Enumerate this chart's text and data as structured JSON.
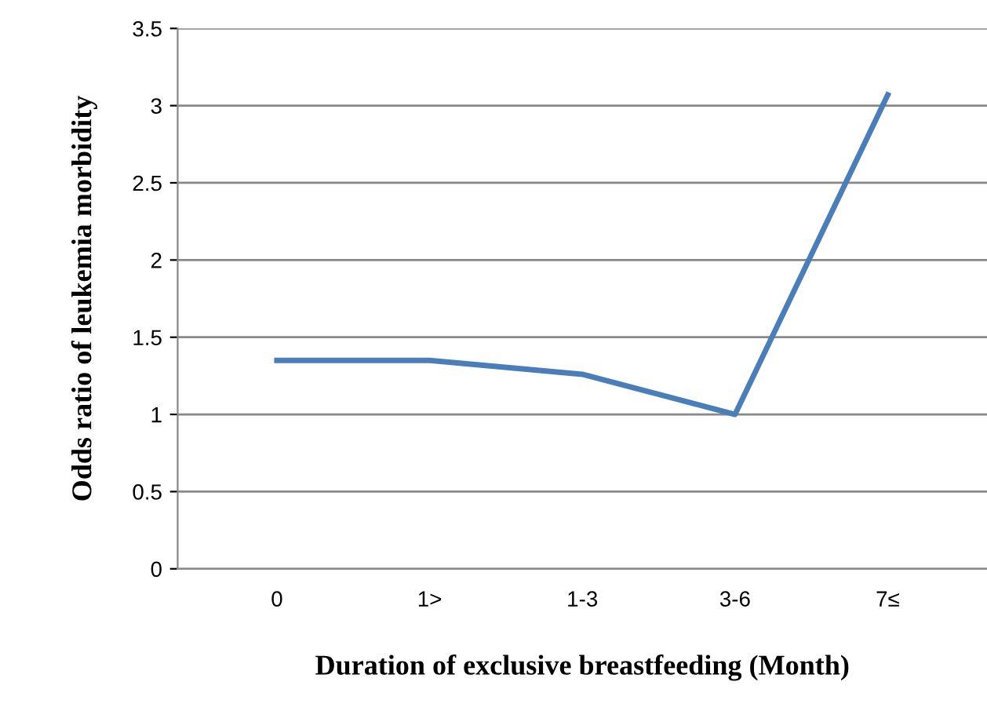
{
  "chart_data": {
    "type": "line",
    "xlabel": "Duration of exclusive breastfeeding (Month)",
    "ylabel": "Odds ratio of leukemia morbidity",
    "categories": [
      "0",
      "1>",
      "1-3",
      "3-6",
      "7≤"
    ],
    "series": [
      {
        "color": "#4a7ebb",
        "values": [
          1.35,
          1.35,
          1.26,
          1.0,
          3.07
        ]
      }
    ],
    "ylim": [
      0,
      3.5
    ],
    "yticks": [
      0,
      0.5,
      1,
      1.5,
      2,
      2.5,
      3,
      3.5
    ],
    "grid": "y",
    "marker": "none",
    "line_style": "solid"
  }
}
